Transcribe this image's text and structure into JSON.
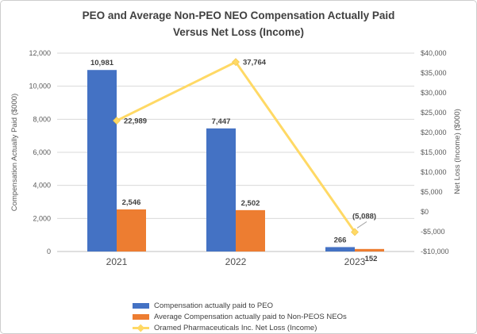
{
  "title": {
    "line1": "PEO and Average Non-PEO NEO Compensation Actually Paid",
    "line2": "Versus Net Loss (Income)"
  },
  "chart_data": {
    "type": "combo-bar-line",
    "grid": true,
    "legend_position": "bottom",
    "categories": [
      "2021",
      "2022",
      "2023"
    ],
    "series": [
      {
        "name": "Compensation actually paid to PEO",
        "type": "bar",
        "axis": "left",
        "color": "#4472C4",
        "values": [
          10981,
          7447,
          266
        ],
        "labels": [
          "10,981",
          "7,447",
          "266"
        ]
      },
      {
        "name": "Average Compensation actually paid to Non-PEOS NEOs",
        "type": "bar",
        "axis": "left",
        "color": "#ED7D31",
        "values": [
          2546,
          2502,
          152
        ],
        "labels": [
          "2,546",
          "2,502",
          "152"
        ]
      },
      {
        "name": "Oramed Pharmaceuticals Inc. Net Loss (Income)",
        "type": "line",
        "axis": "right",
        "color": "#FFD965",
        "values": [
          22989,
          37764,
          -5088
        ],
        "labels": [
          "22,989",
          "37,764",
          "(5,088)"
        ]
      }
    ],
    "left_axis": {
      "title": "Compensation Actually Paid ($000)",
      "min": 0,
      "max": 12000,
      "ticks": [
        "0",
        "2,000",
        "4,000",
        "6,000",
        "8,000",
        "10,000",
        "12,000"
      ]
    },
    "right_axis": {
      "title": "Net Loss (Income) ($000)",
      "min": -10000,
      "max": 40000,
      "ticks": [
        "-$10,000",
        "-$5,000",
        "$0",
        "$5,000",
        "$10,000",
        "$15,000",
        "$20,000",
        "$25,000",
        "$30,000",
        "$35,000",
        "$40,000"
      ]
    },
    "colors": {
      "gridline": "#D9D9D9",
      "axis_line": "#BFBFBF",
      "tick_text": "#595959",
      "data_label": "#404040",
      "leader_line": "#A6A6A6"
    }
  }
}
